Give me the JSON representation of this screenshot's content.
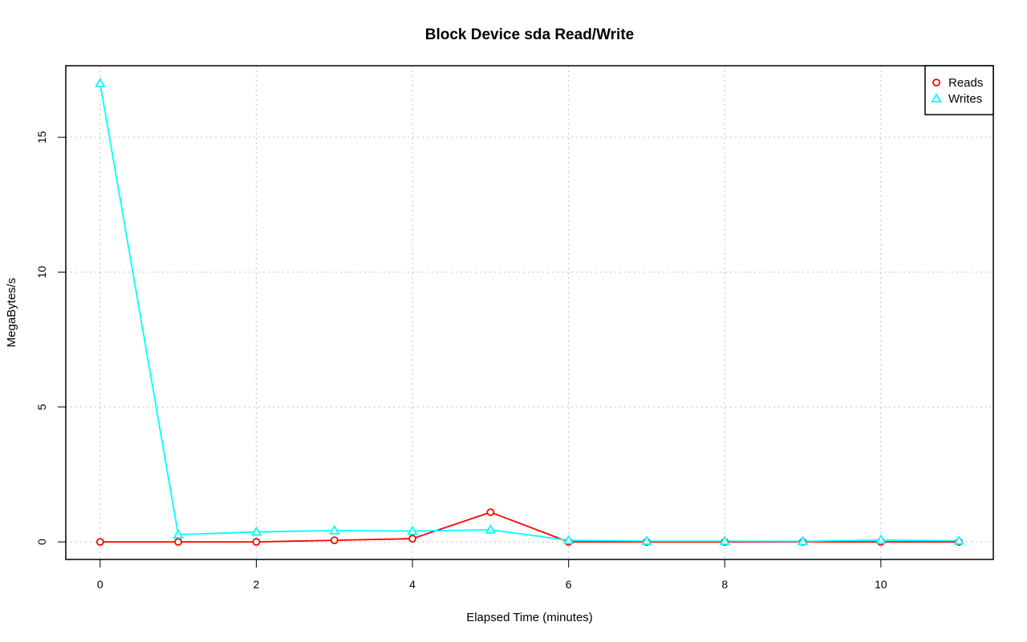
{
  "chart_data": {
    "type": "line",
    "title": "Block Device sda Read/Write",
    "xlabel": "Elapsed Time (minutes)",
    "ylabel": "MegaBytes/s",
    "x": [
      0,
      1,
      2,
      3,
      4,
      5,
      6,
      7,
      8,
      9,
      10,
      11
    ],
    "xlim": [
      -0.44,
      11.44
    ],
    "ylim": [
      -0.65,
      17.65
    ],
    "x_ticks": [
      0,
      2,
      4,
      6,
      8,
      10
    ],
    "x_tick_labels": [
      "0",
      "2",
      "4",
      "6",
      "8",
      "10"
    ],
    "y_ticks": [
      0,
      5,
      10,
      15
    ],
    "y_tick_labels": [
      "0",
      "5",
      "10",
      "15"
    ],
    "grid": true,
    "legend_position": "top-right",
    "series": [
      {
        "name": "Reads",
        "color": "#ff0000",
        "marker": "circle",
        "values": [
          0.0,
          0.0,
          0.0,
          0.06,
          0.12,
          1.1,
          0.0,
          0.0,
          0.0,
          0.0,
          0.0,
          0.0
        ]
      },
      {
        "name": "Writes",
        "color": "#00ffff",
        "marker": "triangle",
        "values": [
          17.0,
          0.27,
          0.37,
          0.42,
          0.4,
          0.45,
          0.06,
          0.03,
          0.03,
          0.02,
          0.07,
          0.04
        ]
      }
    ]
  }
}
